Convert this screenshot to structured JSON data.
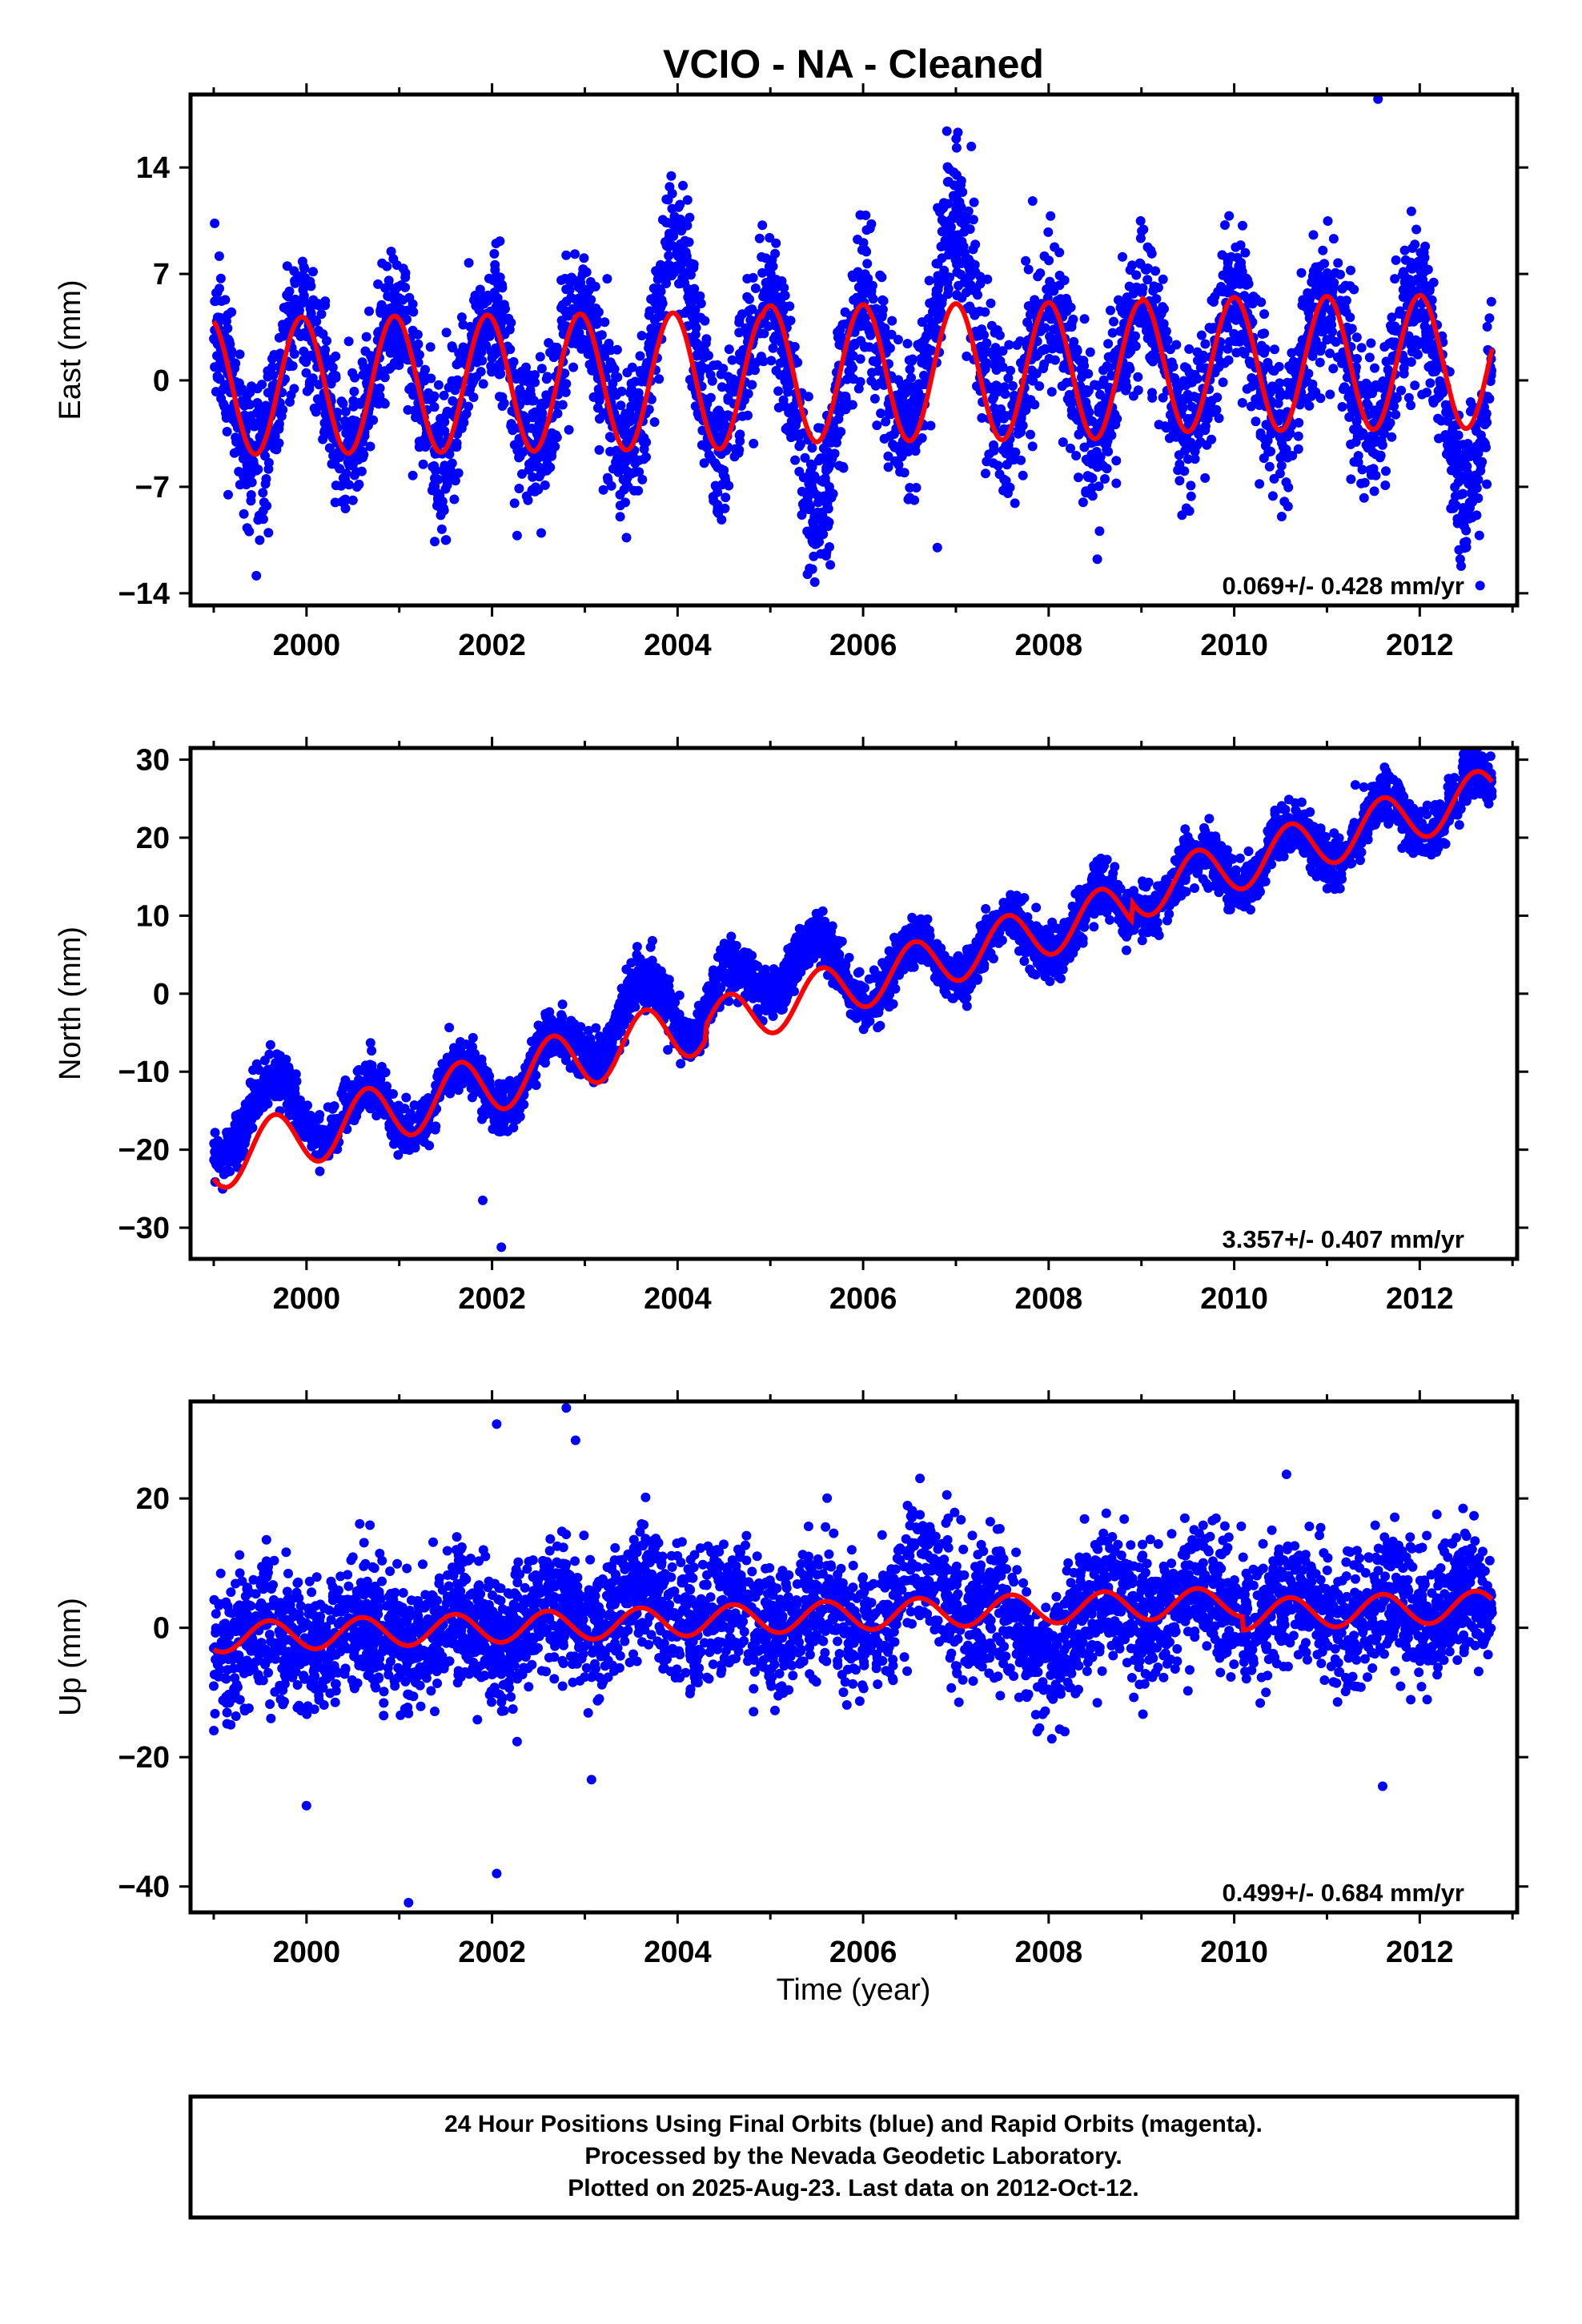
{
  "title": "VCIO  - NA - Cleaned",
  "xlabel": "Time (year)",
  "footer": [
    "24 Hour Positions Using Final Orbits (blue) and Rapid Orbits (magenta).",
    "Processed by the Nevada Geodetic Laboratory.",
    "Plotted on 2025-Aug-23. Last data on 2012-Oct-12."
  ],
  "colors": {
    "data": "#0000ff",
    "model": "#ff0000",
    "frame": "#000000"
  },
  "chart_data": [
    {
      "type": "scatter",
      "name": "east",
      "ylabel": "East (mm)",
      "xlim": [
        1998.75,
        2013.05
      ],
      "ylim": [
        -14.8,
        18.8
      ],
      "xticks": [
        2000,
        2002,
        2004,
        2006,
        2008,
        2010,
        2012
      ],
      "yticks": [
        14,
        7,
        0,
        -7,
        -14
      ],
      "rate_text": "0.069+/- 0.428 mm/yr",
      "data_range": [
        1999.0,
        2012.78
      ],
      "rate_mm_per_yr": 0.069,
      "seasonal": {
        "segments": [
          {
            "t0": 1999.0,
            "t1": 2004.9,
            "offset": -0.4,
            "amp1": 4.5,
            "phase1": 1999.95
          },
          {
            "t0": 2004.9,
            "t1": 2009.0,
            "offset": 0.0,
            "amp1": 4.5,
            "phase1": 2000.0
          },
          {
            "t0": 2009.0,
            "t1": 2012.8,
            "offset": 0.3,
            "amp1": 4.4,
            "phase1": 2000.0
          }
        ]
      },
      "residual_bumps": [
        {
          "t": 2004.0,
          "w": 0.25,
          "a": 4.5
        },
        {
          "t": 2005.5,
          "w": 0.25,
          "a": -4.5
        },
        {
          "t": 2007.0,
          "w": 0.35,
          "a": 5.0
        },
        {
          "t": 2012.5,
          "w": 0.3,
          "a": -4.0
        }
      ],
      "scatter_noise_mm": 2.4,
      "outliers": [
        [
          2011.55,
          18.5
        ],
        [
          2003.2,
          -7.2
        ],
        [
          2006.8,
          -11.0
        ],
        [
          2012.65,
          -13.5
        ]
      ],
      "n_points": 4300
    },
    {
      "type": "scatter",
      "name": "north",
      "ylabel": "North (mm)",
      "xlim": [
        1998.75,
        2013.05
      ],
      "ylim": [
        -34,
        31.5
      ],
      "xticks": [
        2000,
        2002,
        2004,
        2006,
        2008,
        2010,
        2012
      ],
      "yticks": [
        30,
        20,
        10,
        0,
        -10,
        -20,
        -30
      ],
      "rate_text": "3.357+/- 0.407 mm/yr",
      "data_range": [
        1999.0,
        2012.78
      ],
      "rate_mm_per_yr": 3.357,
      "seasonal": {
        "segments": [
          {
            "t0": 1999.0,
            "t1": 2004.3,
            "offset": -21.5,
            "amp1": 3.8,
            "phase1": 2000.65
          },
          {
            "t0": 2004.3,
            "t1": 2008.9,
            "offset": -22.0,
            "amp1": 3.3,
            "phase1": 2000.55
          },
          {
            "t0": 2008.9,
            "t1": 2012.8,
            "offset": -20.5,
            "amp1": 3.3,
            "phase1": 2000.6
          }
        ]
      },
      "residual_bumps": [
        {
          "t": 1999.5,
          "w": 0.8,
          "a": 5.0
        },
        {
          "t": 2003.5,
          "w": 0.6,
          "a": 4.5
        },
        {
          "t": 2004.9,
          "w": 0.6,
          "a": 4.0
        },
        {
          "t": 2005.4,
          "w": 0.3,
          "a": 3.5
        }
      ],
      "scatter_noise_mm": 1.6,
      "outliers": [
        [
          2002.1,
          -32.5
        ],
        [
          2001.9,
          -26.5
        ],
        [
          2012.6,
          30.5
        ]
      ],
      "n_points": 4300
    },
    {
      "type": "scatter",
      "name": "up",
      "ylabel": "Up (mm)",
      "xlim": [
        1998.75,
        2013.05
      ],
      "ylim": [
        -44,
        35
      ],
      "xticks": [
        2000,
        2002,
        2004,
        2006,
        2008,
        2010,
        2012
      ],
      "yticks": [
        20,
        0,
        -20,
        -40
      ],
      "rate_text": "0.499+/- 0.684 mm/yr",
      "data_range": [
        1999.0,
        2012.78
      ],
      "rate_mm_per_yr": 0.499,
      "seasonal": {
        "segments": [
          {
            "t0": 1999.0,
            "t1": 2010.1,
            "offset": -1.5,
            "amp1": 2.3,
            "phase1": 2000.6
          },
          {
            "t0": 2010.1,
            "t1": 2012.8,
            "offset": -3.5,
            "amp1": 2.4,
            "phase1": 2000.6
          }
        ]
      },
      "residual_bumps": [
        {
          "t": 2007.9,
          "w": 0.35,
          "a": -7.0
        },
        {
          "t": 2006.7,
          "w": 0.3,
          "a": 5.0
        },
        {
          "t": 2003.5,
          "w": 0.8,
          "a": 3.0
        }
      ],
      "scatter_noise_mm": 5.0,
      "outliers": [
        [
          2002.05,
          31.5
        ],
        [
          2002.8,
          34.0
        ],
        [
          2002.9,
          29.0
        ],
        [
          2000.0,
          -27.5
        ],
        [
          2002.05,
          -38.0
        ],
        [
          2001.1,
          -42.5
        ],
        [
          2011.6,
          -24.5
        ]
      ],
      "n_points": 4300
    }
  ]
}
